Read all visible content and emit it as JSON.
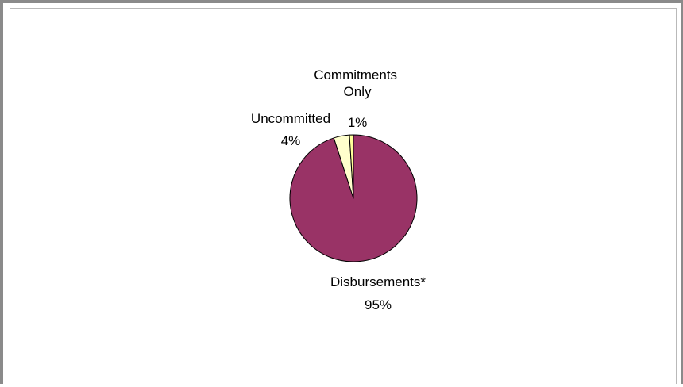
{
  "chart_data": {
    "type": "pie",
    "title": "",
    "legend": "none",
    "slices": [
      {
        "label": "Disbursements*",
        "value": 95,
        "percent_label": "95%",
        "color": "#993366"
      },
      {
        "label": "Uncommitted",
        "value": 4,
        "percent_label": "4%",
        "color": "#ffffcc"
      },
      {
        "label": "Commitments Only",
        "value": 1,
        "percent_label": "1%",
        "color": "#ffff99"
      }
    ]
  }
}
